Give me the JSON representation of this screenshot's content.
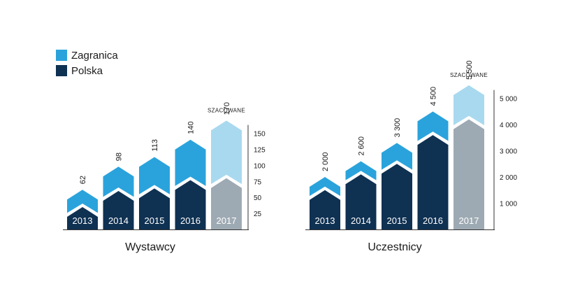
{
  "colors": {
    "abroad": "#2aa3dc",
    "poland": "#0f3152",
    "estimate_top": "#a8d9ef",
    "estimate_bottom": "#9eaab3",
    "axis": "#333333",
    "text": "#1a1a1a"
  },
  "legend": {
    "items": [
      {
        "label": "Zagranica",
        "color": "#2aa3dc"
      },
      {
        "label": "Polska",
        "color": "#0f3152"
      }
    ]
  },
  "chart_data": [
    {
      "type": "bar",
      "title": "Wystawcy",
      "categories": [
        "2013",
        "2014",
        "2015",
        "2016",
        "2017"
      ],
      "series": [
        {
          "name": "Polska",
          "values": [
            35,
            60,
            64,
            77,
            80
          ]
        },
        {
          "name": "Zagranica",
          "values": [
            27,
            38,
            49,
            63,
            90
          ]
        }
      ],
      "totals": [
        62,
        98,
        113,
        140,
        170
      ],
      "total_labels": [
        "62",
        "98",
        "113",
        "140",
        "170"
      ],
      "estimate_label": "SZACOWANE",
      "estimate_index": 4,
      "ylim": [
        0,
        190
      ],
      "yticks": [
        25,
        50,
        75,
        100,
        125,
        150
      ],
      "ytick_labels": [
        "25",
        "50",
        "75",
        "100",
        "125",
        "150"
      ]
    },
    {
      "type": "bar",
      "title": "Uczestnicy",
      "categories": [
        "2013",
        "2014",
        "2015",
        "2016",
        "2017"
      ],
      "series": [
        {
          "name": "Polska",
          "values": [
            1500,
            2100,
            2500,
            3600,
            4200
          ]
        },
        {
          "name": "Zagranica",
          "values": [
            500,
            500,
            800,
            900,
            1300
          ]
        }
      ],
      "totals": [
        2000,
        2600,
        3300,
        4500,
        5500
      ],
      "total_labels": [
        "2 000",
        "2 600",
        "3 300",
        "4 500",
        "5 500"
      ],
      "estimate_label": "SZACOWANE",
      "estimate_index": 4,
      "ylim": [
        0,
        5550
      ],
      "yticks": [
        1000,
        2000,
        3000,
        4000,
        5000
      ],
      "ytick_labels": [
        "1 000",
        "2 000",
        "3 000",
        "4 000",
        "5 000"
      ]
    }
  ]
}
